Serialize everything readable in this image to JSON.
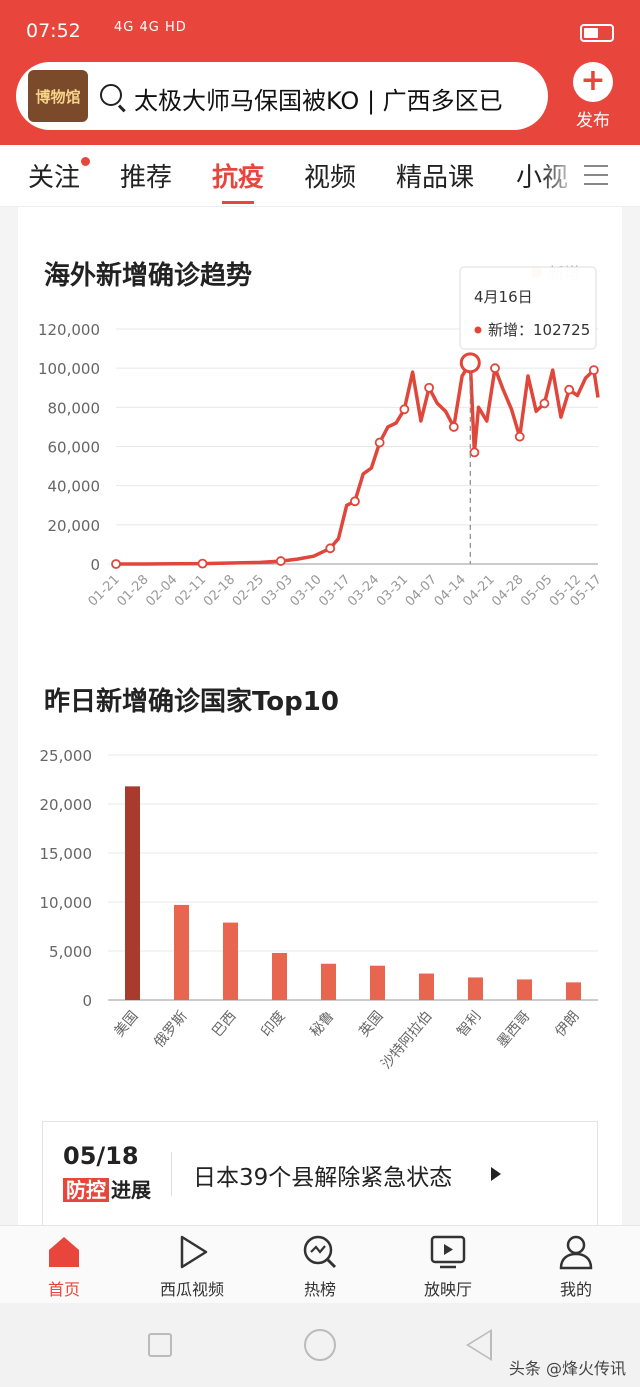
{
  "status_bar": {
    "time": "07:52",
    "signals": "4G 4G HD"
  },
  "search": {
    "logo_text": "博物馆",
    "query": "太极大师马保国被KO | 广西多区已"
  },
  "publish_label": "发布",
  "tabs": [
    {
      "label": "关注"
    },
    {
      "label": "推荐"
    },
    {
      "label": "抗疫"
    },
    {
      "label": "视频"
    },
    {
      "label": "精品课"
    },
    {
      "label": "小视"
    }
  ],
  "chart1_title": "海外新增确诊趋势",
  "chart2_title": "昨日新增确诊国家Top10",
  "chart_data": [
    {
      "type": "line",
      "title": "海外新增确诊趋势",
      "legend": "新增",
      "ylim": [
        0,
        120000
      ],
      "yticks": [
        "120,000",
        "100,000",
        "80,000",
        "60,000",
        "40,000",
        "20,000",
        "0"
      ],
      "xticks": [
        "01-21",
        "01-28",
        "02-04",
        "02-11",
        "02-18",
        "02-25",
        "03-03",
        "03-10",
        "03-17",
        "03-24",
        "03-31",
        "04-07",
        "04-14",
        "04-21",
        "04-28",
        "05-05",
        "05-12",
        "05-17"
      ],
      "x_range": [
        "01-21",
        "05-17"
      ],
      "series": [
        {
          "name": "新增",
          "x": [
            "01-21",
            "01-28",
            "02-04",
            "02-11",
            "02-18",
            "02-25",
            "03-01",
            "03-05",
            "03-09",
            "03-13",
            "03-15",
            "03-17",
            "03-19",
            "03-21",
            "03-23",
            "03-25",
            "03-27",
            "03-29",
            "03-31",
            "04-02",
            "04-04",
            "04-06",
            "04-08",
            "04-10",
            "04-12",
            "04-14",
            "04-16",
            "04-17",
            "04-18",
            "04-20",
            "04-22",
            "04-24",
            "04-26",
            "04-28",
            "04-30",
            "05-02",
            "05-04",
            "05-06",
            "05-08",
            "05-10",
            "05-12",
            "05-14",
            "05-16",
            "05-17"
          ],
          "values": [
            0,
            0,
            100,
            200,
            500,
            800,
            1500,
            2500,
            4000,
            8000,
            13000,
            30000,
            32000,
            46000,
            49000,
            62000,
            70000,
            72000,
            79000,
            98000,
            73000,
            90000,
            82000,
            78000,
            70000,
            96000,
            102725,
            57000,
            80000,
            73000,
            100000,
            89000,
            79000,
            65000,
            96000,
            78000,
            82000,
            99000,
            75000,
            89000,
            86000,
            95000,
            99000,
            85000
          ]
        }
      ],
      "tooltip": {
        "date": "4月16日",
        "label": "新增",
        "value": "102725"
      }
    },
    {
      "type": "bar",
      "title": "昨日新增确诊国家Top10",
      "categories": [
        "美国",
        "俄罗斯",
        "巴西",
        "印度",
        "秘鲁",
        "英国",
        "沙特阿拉伯",
        "智利",
        "墨西哥",
        "伊朗"
      ],
      "values": [
        21800,
        9700,
        7900,
        4800,
        3700,
        3500,
        2700,
        2300,
        2100,
        1800
      ],
      "ylim": [
        0,
        25000
      ],
      "yticks": [
        "25,000",
        "20,000",
        "15,000",
        "10,000",
        "5,000",
        "0"
      ],
      "colors": {
        "highlight": "#a83a2e",
        "bar": "#e8654f"
      }
    }
  ],
  "news": {
    "date": "05/18",
    "badge_red": "防控",
    "badge_black": "进展",
    "headline": "日本39个县解除紧急状态"
  },
  "bottom_nav": [
    {
      "label": "首页",
      "icon": "home-icon"
    },
    {
      "label": "西瓜视频",
      "icon": "play-icon"
    },
    {
      "label": "热榜",
      "icon": "trending-search-icon"
    },
    {
      "label": "放映厅",
      "icon": "tv-icon"
    },
    {
      "label": "我的",
      "icon": "user-icon"
    }
  ],
  "watermark": "头条 @烽火传讯",
  "colors": {
    "accent": "#e8453c",
    "line": "#e0463a"
  }
}
